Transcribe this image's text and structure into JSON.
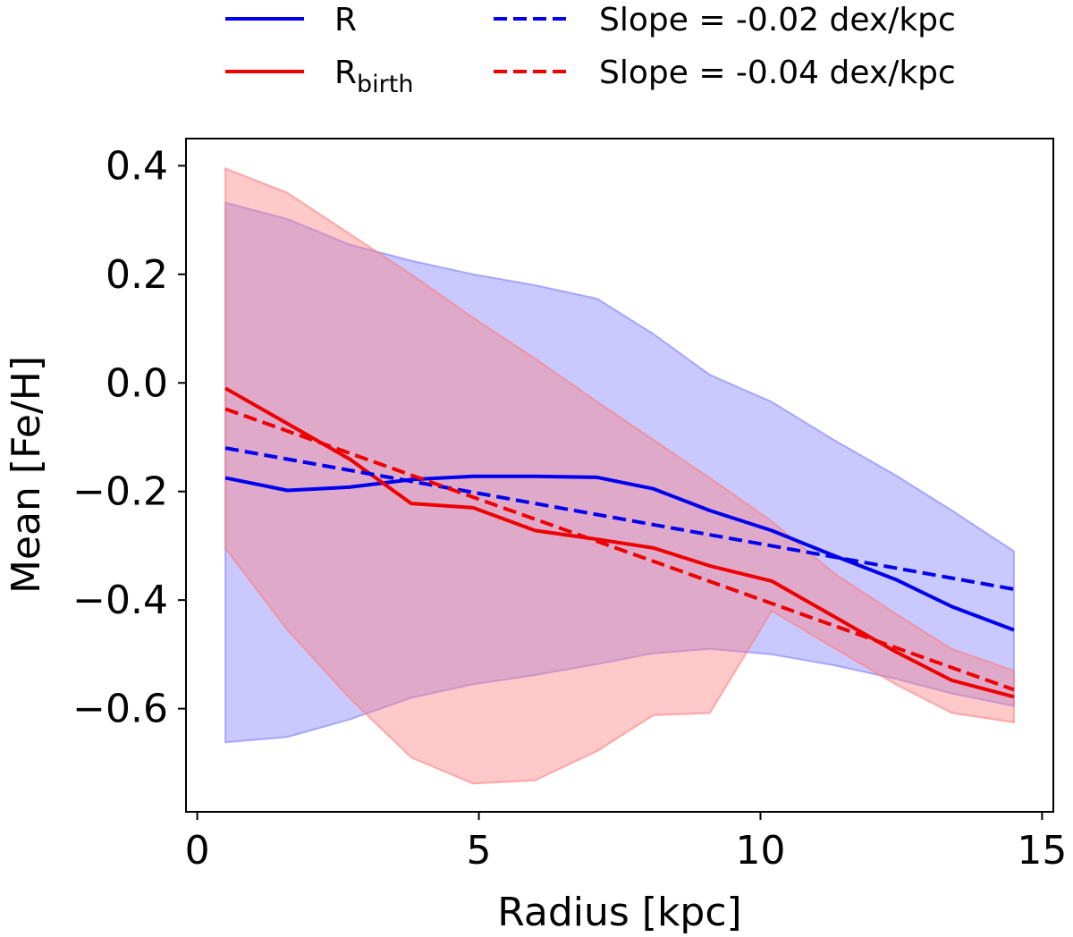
{
  "chart_data": {
    "type": "line",
    "title": "",
    "xlabel": "Radius [kpc]",
    "ylabel": "Mean [Fe/H]",
    "xlim": [
      -0.2,
      15.2
    ],
    "ylim": [
      -0.79,
      0.45
    ],
    "xticks": [
      0,
      5,
      10,
      15
    ],
    "xtick_labels": [
      "0",
      "5",
      "10",
      "15"
    ],
    "yticks": [
      -0.6,
      -0.4,
      -0.2,
      0.0,
      0.2,
      0.4
    ],
    "ytick_labels": [
      "−0.6",
      "−0.4",
      "−0.2",
      "0.0",
      "0.2",
      "0.4"
    ],
    "grid": false,
    "legend_position": "above-plot",
    "colors": {
      "R": "#0000ee",
      "R_birth": "#ee0000",
      "R_band": "#7f7fff",
      "R_birth_band": "#ff7f7f"
    },
    "series": [
      {
        "id": "R",
        "name": "R",
        "style": "solid",
        "x": [
          0.5,
          1.6,
          2.7,
          3.8,
          4.9,
          6.0,
          7.1,
          8.1,
          9.1,
          10.2,
          11.3,
          12.4,
          13.4,
          14.5
        ],
        "values": [
          -0.175,
          -0.198,
          -0.192,
          -0.178,
          -0.172,
          -0.172,
          -0.174,
          -0.195,
          -0.235,
          -0.272,
          -0.318,
          -0.362,
          -0.412,
          -0.455
        ]
      },
      {
        "id": "R_birth",
        "name": "R",
        "name_sub": "birth",
        "style": "solid",
        "x": [
          0.5,
          1.6,
          2.7,
          3.8,
          4.9,
          6.0,
          7.1,
          8.1,
          9.1,
          10.2,
          11.3,
          12.4,
          13.4,
          14.5
        ],
        "values": [
          -0.01,
          -0.075,
          -0.14,
          -0.222,
          -0.23,
          -0.272,
          -0.288,
          -0.304,
          -0.337,
          -0.365,
          -0.43,
          -0.495,
          -0.548,
          -0.578
        ]
      },
      {
        "id": "R_fit",
        "name": "Slope = -0.02 dex/kpc",
        "style": "dashed",
        "x": [
          0.5,
          14.5
        ],
        "values": [
          -0.12,
          -0.38
        ]
      },
      {
        "id": "R_birth_fit",
        "name": "Slope = -0.04 dex/kpc",
        "style": "dashed",
        "x": [
          0.5,
          14.5
        ],
        "values": [
          -0.048,
          -0.565
        ]
      }
    ],
    "bands": [
      {
        "id": "R_band",
        "x": [
          0.5,
          1.6,
          2.7,
          3.8,
          4.9,
          6.0,
          7.1,
          8.1,
          9.1,
          10.2,
          11.3,
          12.4,
          13.4,
          14.5
        ],
        "upper": [
          0.332,
          0.302,
          0.255,
          0.225,
          0.2,
          0.18,
          0.155,
          0.09,
          0.015,
          -0.035,
          -0.105,
          -0.17,
          -0.235,
          -0.31
        ],
        "lower": [
          -0.662,
          -0.652,
          -0.62,
          -0.58,
          -0.555,
          -0.538,
          -0.518,
          -0.498,
          -0.49,
          -0.5,
          -0.52,
          -0.545,
          -0.572,
          -0.595
        ]
      },
      {
        "id": "R_birth_band",
        "x": [
          0.5,
          1.6,
          2.7,
          3.8,
          4.9,
          6.0,
          7.1,
          8.1,
          9.1,
          10.2,
          11.3,
          12.4,
          13.4,
          14.5
        ],
        "upper": [
          0.395,
          0.35,
          0.275,
          0.2,
          0.12,
          0.045,
          -0.035,
          -0.105,
          -0.175,
          -0.255,
          -0.35,
          -0.425,
          -0.49,
          -0.53
        ],
        "lower": [
          -0.305,
          -0.455,
          -0.58,
          -0.69,
          -0.738,
          -0.732,
          -0.678,
          -0.612,
          -0.608,
          -0.42,
          -0.488,
          -0.555,
          -0.608,
          -0.625
        ]
      }
    ]
  }
}
